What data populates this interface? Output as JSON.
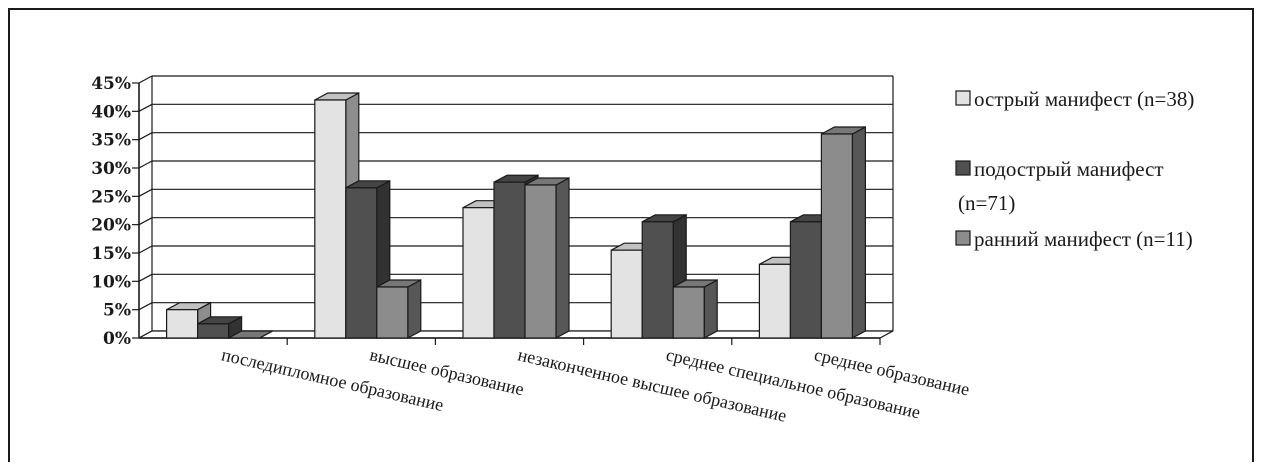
{
  "chart_data": {
    "type": "bar",
    "style": "3d-clustered",
    "categories": [
      "последипломное образование",
      "высшее образование",
      "незаконченное высшее образование",
      "среднее специальное образование",
      "среднее образование"
    ],
    "series": [
      {
        "name": "острый манифест (n=38)",
        "color": "#e3e3e3",
        "values": [
          5,
          42,
          23,
          15.5,
          13
        ]
      },
      {
        "name": "подострый манифест (n=71)",
        "color": "#505050",
        "values": [
          2.5,
          26.5,
          27.5,
          20.5,
          20.5
        ]
      },
      {
        "name": "ранний манифест (n=11)",
        "color": "#8c8c8c",
        "values": [
          0,
          9,
          27,
          9,
          36
        ]
      }
    ],
    "yticks": [
      "0%",
      "5%",
      "10%",
      "15%",
      "20%",
      "25%",
      "30%",
      "35%",
      "40%",
      "45%"
    ],
    "ylim": [
      0,
      45
    ],
    "grid": true,
    "legend_position": "right"
  },
  "legend": {
    "items": [
      {
        "lines": [
          "острый манифест (n=38)"
        ]
      },
      {
        "lines": [
          "подострый манифест",
          "(n=71)"
        ]
      },
      {
        "lines": [
          "ранний манифест (n=11)"
        ]
      }
    ]
  }
}
